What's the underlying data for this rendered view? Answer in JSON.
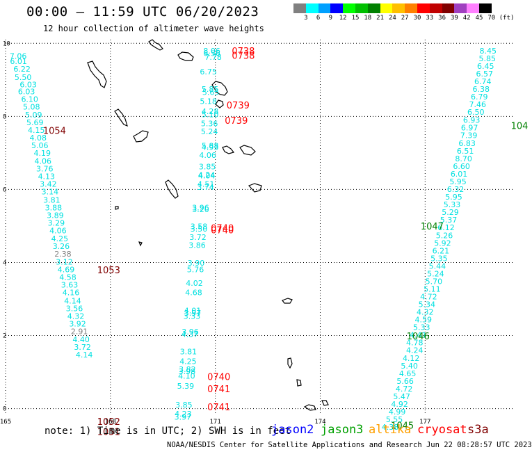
{
  "header": {
    "title": "00:00 – 11:59 UTC 06/20/2023",
    "subtitle": "12 hour collection of altimeter wave heights"
  },
  "color_scale": {
    "labels": [
      "3",
      "6",
      "9",
      "12",
      "15",
      "18",
      "21",
      "24",
      "27",
      "30",
      "33",
      "36",
      "39",
      "42",
      "45",
      "70",
      "(ft)"
    ],
    "colors": [
      "#808080",
      "#00ffff",
      "#00a0ff",
      "#0000ff",
      "#00ff00",
      "#00c000",
      "#008000",
      "#ffff00",
      "#ffc000",
      "#ff8000",
      "#ff0000",
      "#c00000",
      "#800000",
      "#a040c0",
      "#ff80ff",
      "#000000"
    ]
  },
  "axes": {
    "x_ticks": [
      {
        "value": 165,
        "label": "165"
      },
      {
        "value": 168,
        "label": "168"
      },
      {
        "value": 171,
        "label": "171"
      },
      {
        "value": 174,
        "label": "174"
      },
      {
        "value": 177,
        "label": "177"
      }
    ],
    "y_ticks": [
      {
        "value": 0,
        "label": "0"
      },
      {
        "value": 2,
        "label": "2"
      },
      {
        "value": 4,
        "label": "4"
      },
      {
        "value": 6,
        "label": "6"
      },
      {
        "value": 8,
        "label": "8"
      },
      {
        "value": 10,
        "label": "10"
      }
    ],
    "xlim": [
      165,
      179.5
    ],
    "ylim": [
      -0.16,
      10.1
    ],
    "grid": true
  },
  "tracks": [
    {
      "name": "track-left",
      "color": "#00e0e0",
      "points": [
        {
          "lon": 165.36,
          "lat": 9.58,
          "v": "7.06"
        },
        {
          "lon": 165.37,
          "lat": 9.43,
          "v": "6.01"
        },
        {
          "lon": 165.47,
          "lat": 9.22,
          "v": "6.22"
        },
        {
          "lon": 165.5,
          "lat": 9.0,
          "v": "5.50"
        },
        {
          "lon": 165.65,
          "lat": 8.8,
          "v": "6.03"
        },
        {
          "lon": 165.6,
          "lat": 8.61,
          "v": "6.03"
        },
        {
          "lon": 165.69,
          "lat": 8.4,
          "v": "6.10"
        },
        {
          "lon": 165.74,
          "lat": 8.19,
          "v": "5.08"
        },
        {
          "lon": 165.8,
          "lat": 7.97,
          "v": "5.09"
        },
        {
          "lon": 165.84,
          "lat": 7.76,
          "v": "5.69"
        },
        {
          "lon": 165.88,
          "lat": 7.55,
          "v": "4.15"
        },
        {
          "lon": 165.93,
          "lat": 7.34,
          "v": "4.08"
        },
        {
          "lon": 165.98,
          "lat": 7.13,
          "v": "5.06"
        },
        {
          "lon": 166.05,
          "lat": 6.92,
          "v": "4.19"
        },
        {
          "lon": 166.07,
          "lat": 6.7,
          "v": "4.06"
        },
        {
          "lon": 166.12,
          "lat": 6.49,
          "v": "3.76"
        },
        {
          "lon": 166.17,
          "lat": 6.28,
          "v": "4.13"
        },
        {
          "lon": 166.22,
          "lat": 6.07,
          "v": "3.42"
        },
        {
          "lon": 166.27,
          "lat": 5.86,
          "v": "3.14"
        },
        {
          "lon": 166.32,
          "lat": 5.64,
          "v": "3.81"
        },
        {
          "lon": 166.37,
          "lat": 5.43,
          "v": "3.88"
        },
        {
          "lon": 166.42,
          "lat": 5.22,
          "v": "3.89"
        },
        {
          "lon": 166.45,
          "lat": 5.01,
          "v": "3.29"
        },
        {
          "lon": 166.5,
          "lat": 4.8,
          "v": "4.06"
        },
        {
          "lon": 166.55,
          "lat": 4.58,
          "v": "4.25"
        },
        {
          "lon": 166.59,
          "lat": 4.37,
          "v": "3.26"
        },
        {
          "lon": 166.64,
          "lat": 4.16,
          "v": "2.38"
        },
        {
          "lon": 166.68,
          "lat": 3.94,
          "v": "3.12"
        },
        {
          "lon": 166.73,
          "lat": 3.73,
          "v": "4.69"
        },
        {
          "lon": 166.78,
          "lat": 3.52,
          "v": "4.58"
        },
        {
          "lon": 166.83,
          "lat": 3.31,
          "v": "3.63"
        },
        {
          "lon": 166.87,
          "lat": 3.1,
          "v": "4.16"
        },
        {
          "lon": 166.92,
          "lat": 2.88,
          "v": "4.14"
        },
        {
          "lon": 166.97,
          "lat": 2.67,
          "v": "3.56"
        },
        {
          "lon": 167.01,
          "lat": 2.46,
          "v": "4.32"
        },
        {
          "lon": 167.06,
          "lat": 2.25,
          "v": "3.92"
        },
        {
          "lon": 167.11,
          "lat": 2.04,
          "v": "2.91"
        },
        {
          "lon": 167.16,
          "lat": 1.82,
          "v": "4.40"
        },
        {
          "lon": 167.2,
          "lat": 1.61,
          "v": "3.72"
        },
        {
          "lon": 167.25,
          "lat": 1.4,
          "v": "4.14"
        }
      ]
    },
    {
      "name": "track-middle",
      "color": "#00e0e0",
      "points": [
        {
          "lon": 170.9,
          "lat": 9.72,
          "v": "8.06"
        },
        {
          "lon": 170.9,
          "lat": 9.65,
          "v": "6.56"
        },
        {
          "lon": 170.94,
          "lat": 9.55,
          "v": "7.78"
        },
        {
          "lon": 170.8,
          "lat": 9.15,
          "v": "6.75"
        },
        {
          "lon": 170.85,
          "lat": 8.67,
          "v": "5.85"
        },
        {
          "lon": 170.87,
          "lat": 8.59,
          "v": "5.65"
        },
        {
          "lon": 170.8,
          "lat": 8.34,
          "v": "5.18"
        },
        {
          "lon": 170.85,
          "lat": 8.06,
          "v": "4.28"
        },
        {
          "lon": 170.85,
          "lat": 7.98,
          "v": "5.10"
        },
        {
          "lon": 170.83,
          "lat": 7.73,
          "v": "5.36"
        },
        {
          "lon": 170.83,
          "lat": 7.51,
          "v": "5.24"
        },
        {
          "lon": 170.85,
          "lat": 7.12,
          "v": "5.88"
        },
        {
          "lon": 170.85,
          "lat": 7.08,
          "v": "4.93"
        },
        {
          "lon": 170.78,
          "lat": 6.86,
          "v": "4.06"
        },
        {
          "lon": 170.77,
          "lat": 6.55,
          "v": "3.85"
        },
        {
          "lon": 170.75,
          "lat": 6.32,
          "v": "4.24"
        },
        {
          "lon": 170.75,
          "lat": 6.3,
          "v": "4.04"
        },
        {
          "lon": 170.73,
          "lat": 6.07,
          "v": "4.51"
        },
        {
          "lon": 170.72,
          "lat": 5.99,
          "v": "3.74"
        },
        {
          "lon": 170.58,
          "lat": 5.43,
          "v": "3.96"
        },
        {
          "lon": 170.58,
          "lat": 5.38,
          "v": "3.20"
        },
        {
          "lon": 170.53,
          "lat": 4.91,
          "v": "3.58"
        },
        {
          "lon": 170.53,
          "lat": 4.85,
          "v": "3.50"
        },
        {
          "lon": 170.5,
          "lat": 4.62,
          "v": "3.72"
        },
        {
          "lon": 170.48,
          "lat": 4.4,
          "v": "3.86"
        },
        {
          "lon": 170.45,
          "lat": 3.91,
          "v": "3.90"
        },
        {
          "lon": 170.43,
          "lat": 3.73,
          "v": "5.76"
        },
        {
          "lon": 170.4,
          "lat": 3.36,
          "v": "4.02"
        },
        {
          "lon": 170.38,
          "lat": 3.1,
          "v": "4.68"
        },
        {
          "lon": 170.35,
          "lat": 2.61,
          "v": "4.01"
        },
        {
          "lon": 170.35,
          "lat": 2.54,
          "v": "3.97"
        },
        {
          "lon": 170.33,
          "lat": 2.46,
          "v": "3.33"
        },
        {
          "lon": 170.28,
          "lat": 2.03,
          "v": "3.96"
        },
        {
          "lon": 170.27,
          "lat": 1.96,
          "v": "4.37"
        },
        {
          "lon": 170.23,
          "lat": 1.49,
          "v": "3.81"
        },
        {
          "lon": 170.22,
          "lat": 1.22,
          "v": "4.25"
        },
        {
          "lon": 170.2,
          "lat": 1.0,
          "v": "3.82"
        },
        {
          "lon": 170.19,
          "lat": 0.94,
          "v": "3.98"
        },
        {
          "lon": 170.18,
          "lat": 0.82,
          "v": "4.10"
        },
        {
          "lon": 170.15,
          "lat": 0.54,
          "v": "5.39"
        },
        {
          "lon": 170.1,
          "lat": 0.03,
          "v": "3.85"
        },
        {
          "lon": 170.08,
          "lat": -0.22,
          "v": "4.23"
        },
        {
          "lon": 170.07,
          "lat": -0.3,
          "v": "3.97"
        }
      ]
    },
    {
      "name": "track-right",
      "color": "#00e0e0",
      "points": [
        {
          "lon": 178.8,
          "lat": 9.72,
          "v": "8.45"
        },
        {
          "lon": 178.78,
          "lat": 9.51,
          "v": "5.85"
        },
        {
          "lon": 178.73,
          "lat": 9.3,
          "v": "6.45"
        },
        {
          "lon": 178.7,
          "lat": 9.09,
          "v": "6.57"
        },
        {
          "lon": 178.65,
          "lat": 8.88,
          "v": "6.74"
        },
        {
          "lon": 178.6,
          "lat": 8.67,
          "v": "6.38"
        },
        {
          "lon": 178.55,
          "lat": 8.46,
          "v": "6.79"
        },
        {
          "lon": 178.5,
          "lat": 8.25,
          "v": "7.46"
        },
        {
          "lon": 178.45,
          "lat": 8.04,
          "v": "6.50"
        },
        {
          "lon": 178.33,
          "lat": 7.83,
          "v": "6.93"
        },
        {
          "lon": 178.27,
          "lat": 7.62,
          "v": "6.97"
        },
        {
          "lon": 178.25,
          "lat": 7.41,
          "v": "7.39"
        },
        {
          "lon": 178.2,
          "lat": 7.19,
          "v": "6.83"
        },
        {
          "lon": 178.15,
          "lat": 6.98,
          "v": "6.51"
        },
        {
          "lon": 178.1,
          "lat": 6.77,
          "v": "8.70"
        },
        {
          "lon": 178.04,
          "lat": 6.56,
          "v": "6.60"
        },
        {
          "lon": 177.97,
          "lat": 6.35,
          "v": "6.01"
        },
        {
          "lon": 177.94,
          "lat": 6.14,
          "v": "5.95"
        },
        {
          "lon": 177.87,
          "lat": 5.93,
          "v": "6.32"
        },
        {
          "lon": 177.82,
          "lat": 5.72,
          "v": "5.95"
        },
        {
          "lon": 177.77,
          "lat": 5.51,
          "v": "5.33"
        },
        {
          "lon": 177.72,
          "lat": 5.3,
          "v": "5.29"
        },
        {
          "lon": 177.67,
          "lat": 5.09,
          "v": "5.37"
        },
        {
          "lon": 177.6,
          "lat": 4.88,
          "v": "6.12"
        },
        {
          "lon": 177.55,
          "lat": 4.67,
          "v": "5.26"
        },
        {
          "lon": 177.5,
          "lat": 4.46,
          "v": "5.92"
        },
        {
          "lon": 177.45,
          "lat": 4.25,
          "v": "6.21"
        },
        {
          "lon": 177.4,
          "lat": 4.04,
          "v": "5.35"
        },
        {
          "lon": 177.35,
          "lat": 3.83,
          "v": "5.44"
        },
        {
          "lon": 177.3,
          "lat": 3.62,
          "v": "5.24"
        },
        {
          "lon": 177.25,
          "lat": 3.41,
          "v": "5.70"
        },
        {
          "lon": 177.2,
          "lat": 3.2,
          "v": "5.11"
        },
        {
          "lon": 177.1,
          "lat": 2.99,
          "v": "4.72"
        },
        {
          "lon": 177.05,
          "lat": 2.78,
          "v": "5.34"
        },
        {
          "lon": 177.0,
          "lat": 2.57,
          "v": "4.32"
        },
        {
          "lon": 176.95,
          "lat": 2.36,
          "v": "4.59"
        },
        {
          "lon": 176.9,
          "lat": 2.15,
          "v": "5.33"
        },
        {
          "lon": 176.8,
          "lat": 1.94,
          "v": "4.41"
        },
        {
          "lon": 176.7,
          "lat": 1.73,
          "v": "4.78"
        },
        {
          "lon": 176.7,
          "lat": 1.52,
          "v": "4.24"
        },
        {
          "lon": 176.6,
          "lat": 1.31,
          "v": "4.12"
        },
        {
          "lon": 176.55,
          "lat": 1.1,
          "v": "5.40"
        },
        {
          "lon": 176.5,
          "lat": 0.89,
          "v": "4.65"
        },
        {
          "lon": 176.43,
          "lat": 0.68,
          "v": "5.66"
        },
        {
          "lon": 176.4,
          "lat": 0.47,
          "v": "4.72"
        },
        {
          "lon": 176.33,
          "lat": 0.26,
          "v": "5.47"
        },
        {
          "lon": 176.27,
          "lat": 0.05,
          "v": "4.92"
        },
        {
          "lon": 176.2,
          "lat": -0.16,
          "v": "4.99"
        },
        {
          "lon": 176.12,
          "lat": -0.37,
          "v": "5.55"
        },
        {
          "lon": 176.0,
          "lat": -0.58,
          "v": "4.38"
        }
      ]
    }
  ],
  "time_labels": [
    {
      "lon": 171.8,
      "lat": 9.7,
      "text": "0738",
      "color": "#ff0000"
    },
    {
      "lon": 171.8,
      "lat": 9.58,
      "text": "0738",
      "color": "#ff0000"
    },
    {
      "lon": 171.65,
      "lat": 8.22,
      "text": "0739",
      "color": "#ff0000"
    },
    {
      "lon": 171.6,
      "lat": 7.8,
      "text": "0739",
      "color": "#ff0000"
    },
    {
      "lon": 166.4,
      "lat": 7.52,
      "text": "1054",
      "color": "#800000"
    },
    {
      "lon": 171.2,
      "lat": 4.86,
      "text": "0740",
      "color": "#ff0000"
    },
    {
      "lon": 171.2,
      "lat": 4.8,
      "text": "0740",
      "color": "#ff0000"
    },
    {
      "lon": 167.95,
      "lat": 3.7,
      "text": "1053",
      "color": "#800000"
    },
    {
      "lon": 171.1,
      "lat": 0.78,
      "text": "0740",
      "color": "#ff0000"
    },
    {
      "lon": 171.1,
      "lat": 0.45,
      "text": "0741",
      "color": "#ff0000"
    },
    {
      "lon": 171.1,
      "lat": -0.05,
      "text": "0741",
      "color": "#ff0000"
    },
    {
      "lon": 167.95,
      "lat": -0.45,
      "text": "1052",
      "color": "#800000"
    },
    {
      "lon": 167.95,
      "lat": -0.72,
      "text": "1051",
      "color": "#800000"
    },
    {
      "lon": 179.7,
      "lat": 7.65,
      "text": "104",
      "color": "#008000"
    },
    {
      "lon": 177.2,
      "lat": 4.9,
      "text": "1047",
      "color": "#008000"
    },
    {
      "lon": 176.8,
      "lat": 1.9,
      "text": "1046",
      "color": "#008000"
    },
    {
      "lon": 176.35,
      "lat": -0.55,
      "text": "1045",
      "color": "#008000"
    }
  ],
  "footer": {
    "note": "note: 1) Time is in UTC; 2) SWH is in feet",
    "satellites": [
      {
        "name": "jason2",
        "color": "#0000ff"
      },
      {
        "name": "jason3",
        "color": "#00a000"
      },
      {
        "name": "altika",
        "color": "#ffa000"
      },
      {
        "name": "cryosat",
        "color": "#ff0000"
      },
      {
        "name": "s3a",
        "color": "#800000"
      }
    ],
    "credit": "NOAA/NESDIS Center for Satellite Applications and Research   Jun 22 08:28:57 UTC 2023"
  }
}
